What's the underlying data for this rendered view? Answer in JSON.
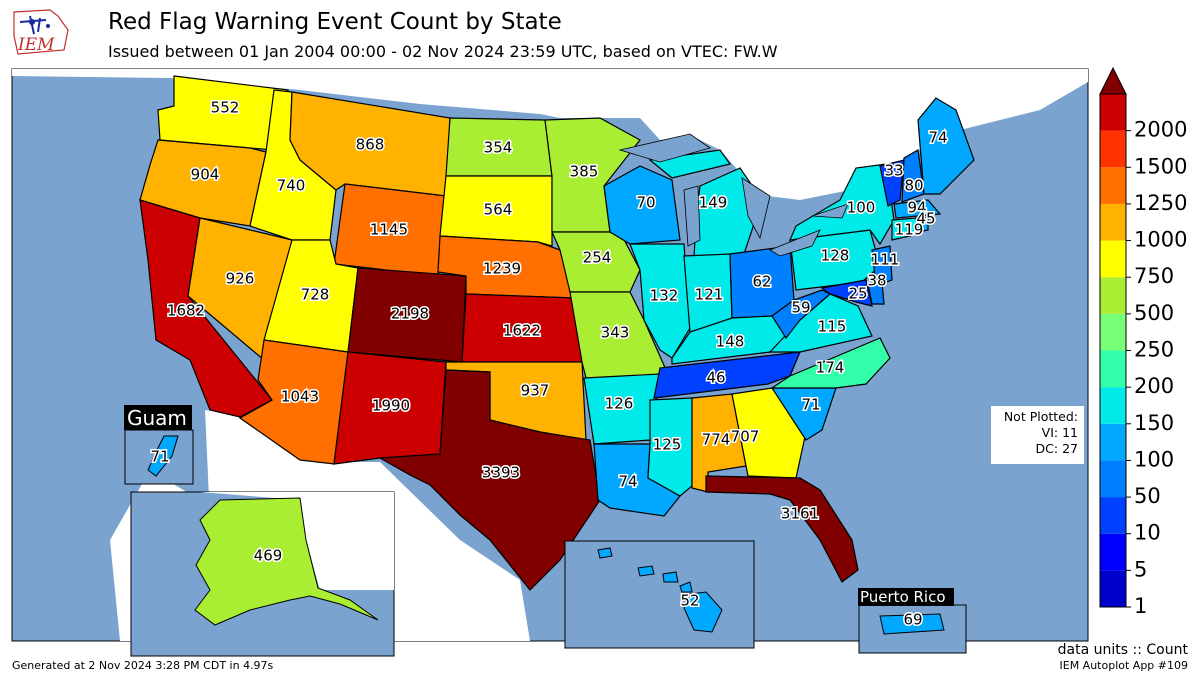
{
  "header": {
    "logo_text": "IEM",
    "title": "Red Flag Warning Event Count by State",
    "subtitle": "Issued between 01 Jan 2004 00:00 - 02 Nov 2024 23:59 UTC, based on VTEC: FW.W"
  },
  "not_plotted": {
    "heading": "Not Plotted:",
    "line1": "VI: 11",
    "line2": "DC: 27"
  },
  "legend": {
    "ticks": [
      "1",
      "5",
      "10",
      "50",
      "100",
      "150",
      "200",
      "250",
      "500",
      "750",
      "1000",
      "1250",
      "1500",
      "2000"
    ],
    "colors": [
      "#0000cc",
      "#0000ff",
      "#0040ff",
      "#0080ff",
      "#00a8ff",
      "#00eaea",
      "#33ffaa",
      "#77ff77",
      "#aaee33",
      "#ffff00",
      "#ffb300",
      "#ff7000",
      "#ff3300",
      "#cc0000"
    ],
    "over_color": "#800000"
  },
  "insets": {
    "guam": "Guam",
    "puerto_rico": "Puerto Rico"
  },
  "footer": {
    "generated": "Generated at 2 Nov 2024 3:28 PM CDT in 4.97s",
    "units": "data units :: Count",
    "app": "IEM Autoplot App #109"
  },
  "states": {
    "WA": "552",
    "OR": "904",
    "CA": "1682",
    "NV": "926",
    "ID": "740",
    "MT": "868",
    "WY": "1145",
    "UT": "728",
    "AZ": "1043",
    "CO": "2198",
    "NM": "1990",
    "ND": "354",
    "SD": "564",
    "NE": "1239",
    "KS": "1622",
    "OK": "937",
    "TX": "3393",
    "MN": "385",
    "IA": "254",
    "MO": "343",
    "AR": "126",
    "LA": "74",
    "WI": "70",
    "MI": "149",
    "IL": "132",
    "IN": "121",
    "KY": "148",
    "TN": "46",
    "MS": "125",
    "AL": "774",
    "GA": "707",
    "FL": "3161",
    "OH": "62",
    "WV": "59",
    "VA": "115",
    "NC": "174",
    "SC": "71",
    "PA": "128",
    "NY": "100",
    "VT": "33",
    "NH": "80",
    "ME": "74",
    "MA": "94",
    "RI": "45",
    "CT": "119",
    "NJ": "111",
    "DE": "38",
    "MD": "25",
    "AK": "469",
    "HI": "52",
    "GU": "71",
    "PR": "69"
  }
}
